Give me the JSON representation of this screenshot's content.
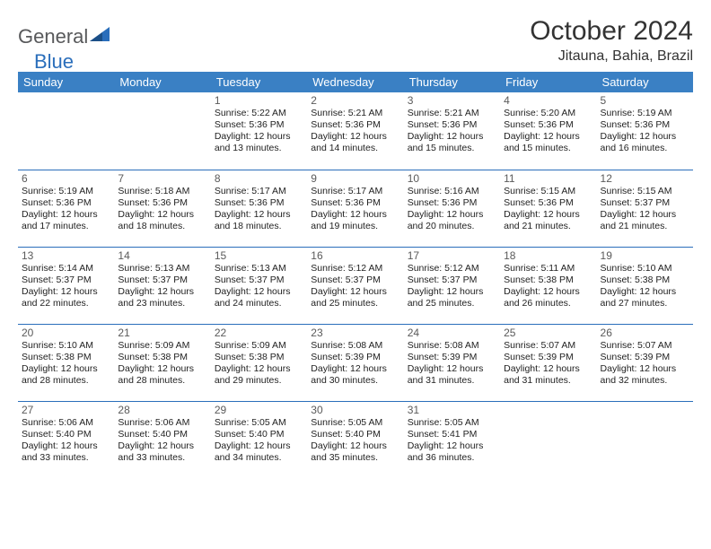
{
  "logo": {
    "general": "General",
    "blue": "Blue"
  },
  "title": "October 2024",
  "location": "Jitauna, Bahia, Brazil",
  "colors": {
    "header_bg": "#3a80c4",
    "header_text": "#ffffff",
    "border": "#2a6ebb",
    "daynum": "#5a5a5a",
    "body_text": "#222222",
    "logo_gray": "#58595b",
    "logo_blue": "#2a6ebb"
  },
  "typography": {
    "title_fontsize": 30,
    "location_fontsize": 16,
    "header_fontsize": 13,
    "daynum_fontsize": 12,
    "cell_fontsize": 10.5
  },
  "day_headers": [
    "Sunday",
    "Monday",
    "Tuesday",
    "Wednesday",
    "Thursday",
    "Friday",
    "Saturday"
  ],
  "weeks": [
    [
      {
        "day": "",
        "sunrise": "",
        "sunset": "",
        "daylight": ""
      },
      {
        "day": "",
        "sunrise": "",
        "sunset": "",
        "daylight": ""
      },
      {
        "day": "1",
        "sunrise": "Sunrise: 5:22 AM",
        "sunset": "Sunset: 5:36 PM",
        "daylight": "Daylight: 12 hours and 13 minutes."
      },
      {
        "day": "2",
        "sunrise": "Sunrise: 5:21 AM",
        "sunset": "Sunset: 5:36 PM",
        "daylight": "Daylight: 12 hours and 14 minutes."
      },
      {
        "day": "3",
        "sunrise": "Sunrise: 5:21 AM",
        "sunset": "Sunset: 5:36 PM",
        "daylight": "Daylight: 12 hours and 15 minutes."
      },
      {
        "day": "4",
        "sunrise": "Sunrise: 5:20 AM",
        "sunset": "Sunset: 5:36 PM",
        "daylight": "Daylight: 12 hours and 15 minutes."
      },
      {
        "day": "5",
        "sunrise": "Sunrise: 5:19 AM",
        "sunset": "Sunset: 5:36 PM",
        "daylight": "Daylight: 12 hours and 16 minutes."
      }
    ],
    [
      {
        "day": "6",
        "sunrise": "Sunrise: 5:19 AM",
        "sunset": "Sunset: 5:36 PM",
        "daylight": "Daylight: 12 hours and 17 minutes."
      },
      {
        "day": "7",
        "sunrise": "Sunrise: 5:18 AM",
        "sunset": "Sunset: 5:36 PM",
        "daylight": "Daylight: 12 hours and 18 minutes."
      },
      {
        "day": "8",
        "sunrise": "Sunrise: 5:17 AM",
        "sunset": "Sunset: 5:36 PM",
        "daylight": "Daylight: 12 hours and 18 minutes."
      },
      {
        "day": "9",
        "sunrise": "Sunrise: 5:17 AM",
        "sunset": "Sunset: 5:36 PM",
        "daylight": "Daylight: 12 hours and 19 minutes."
      },
      {
        "day": "10",
        "sunrise": "Sunrise: 5:16 AM",
        "sunset": "Sunset: 5:36 PM",
        "daylight": "Daylight: 12 hours and 20 minutes."
      },
      {
        "day": "11",
        "sunrise": "Sunrise: 5:15 AM",
        "sunset": "Sunset: 5:36 PM",
        "daylight": "Daylight: 12 hours and 21 minutes."
      },
      {
        "day": "12",
        "sunrise": "Sunrise: 5:15 AM",
        "sunset": "Sunset: 5:37 PM",
        "daylight": "Daylight: 12 hours and 21 minutes."
      }
    ],
    [
      {
        "day": "13",
        "sunrise": "Sunrise: 5:14 AM",
        "sunset": "Sunset: 5:37 PM",
        "daylight": "Daylight: 12 hours and 22 minutes."
      },
      {
        "day": "14",
        "sunrise": "Sunrise: 5:13 AM",
        "sunset": "Sunset: 5:37 PM",
        "daylight": "Daylight: 12 hours and 23 minutes."
      },
      {
        "day": "15",
        "sunrise": "Sunrise: 5:13 AM",
        "sunset": "Sunset: 5:37 PM",
        "daylight": "Daylight: 12 hours and 24 minutes."
      },
      {
        "day": "16",
        "sunrise": "Sunrise: 5:12 AM",
        "sunset": "Sunset: 5:37 PM",
        "daylight": "Daylight: 12 hours and 25 minutes."
      },
      {
        "day": "17",
        "sunrise": "Sunrise: 5:12 AM",
        "sunset": "Sunset: 5:37 PM",
        "daylight": "Daylight: 12 hours and 25 minutes."
      },
      {
        "day": "18",
        "sunrise": "Sunrise: 5:11 AM",
        "sunset": "Sunset: 5:38 PM",
        "daylight": "Daylight: 12 hours and 26 minutes."
      },
      {
        "day": "19",
        "sunrise": "Sunrise: 5:10 AM",
        "sunset": "Sunset: 5:38 PM",
        "daylight": "Daylight: 12 hours and 27 minutes."
      }
    ],
    [
      {
        "day": "20",
        "sunrise": "Sunrise: 5:10 AM",
        "sunset": "Sunset: 5:38 PM",
        "daylight": "Daylight: 12 hours and 28 minutes."
      },
      {
        "day": "21",
        "sunrise": "Sunrise: 5:09 AM",
        "sunset": "Sunset: 5:38 PM",
        "daylight": "Daylight: 12 hours and 28 minutes."
      },
      {
        "day": "22",
        "sunrise": "Sunrise: 5:09 AM",
        "sunset": "Sunset: 5:38 PM",
        "daylight": "Daylight: 12 hours and 29 minutes."
      },
      {
        "day": "23",
        "sunrise": "Sunrise: 5:08 AM",
        "sunset": "Sunset: 5:39 PM",
        "daylight": "Daylight: 12 hours and 30 minutes."
      },
      {
        "day": "24",
        "sunrise": "Sunrise: 5:08 AM",
        "sunset": "Sunset: 5:39 PM",
        "daylight": "Daylight: 12 hours and 31 minutes."
      },
      {
        "day": "25",
        "sunrise": "Sunrise: 5:07 AM",
        "sunset": "Sunset: 5:39 PM",
        "daylight": "Daylight: 12 hours and 31 minutes."
      },
      {
        "day": "26",
        "sunrise": "Sunrise: 5:07 AM",
        "sunset": "Sunset: 5:39 PM",
        "daylight": "Daylight: 12 hours and 32 minutes."
      }
    ],
    [
      {
        "day": "27",
        "sunrise": "Sunrise: 5:06 AM",
        "sunset": "Sunset: 5:40 PM",
        "daylight": "Daylight: 12 hours and 33 minutes."
      },
      {
        "day": "28",
        "sunrise": "Sunrise: 5:06 AM",
        "sunset": "Sunset: 5:40 PM",
        "daylight": "Daylight: 12 hours and 33 minutes."
      },
      {
        "day": "29",
        "sunrise": "Sunrise: 5:05 AM",
        "sunset": "Sunset: 5:40 PM",
        "daylight": "Daylight: 12 hours and 34 minutes."
      },
      {
        "day": "30",
        "sunrise": "Sunrise: 5:05 AM",
        "sunset": "Sunset: 5:40 PM",
        "daylight": "Daylight: 12 hours and 35 minutes."
      },
      {
        "day": "31",
        "sunrise": "Sunrise: 5:05 AM",
        "sunset": "Sunset: 5:41 PM",
        "daylight": "Daylight: 12 hours and 36 minutes."
      },
      {
        "day": "",
        "sunrise": "",
        "sunset": "",
        "daylight": ""
      },
      {
        "day": "",
        "sunrise": "",
        "sunset": "",
        "daylight": ""
      }
    ]
  ]
}
